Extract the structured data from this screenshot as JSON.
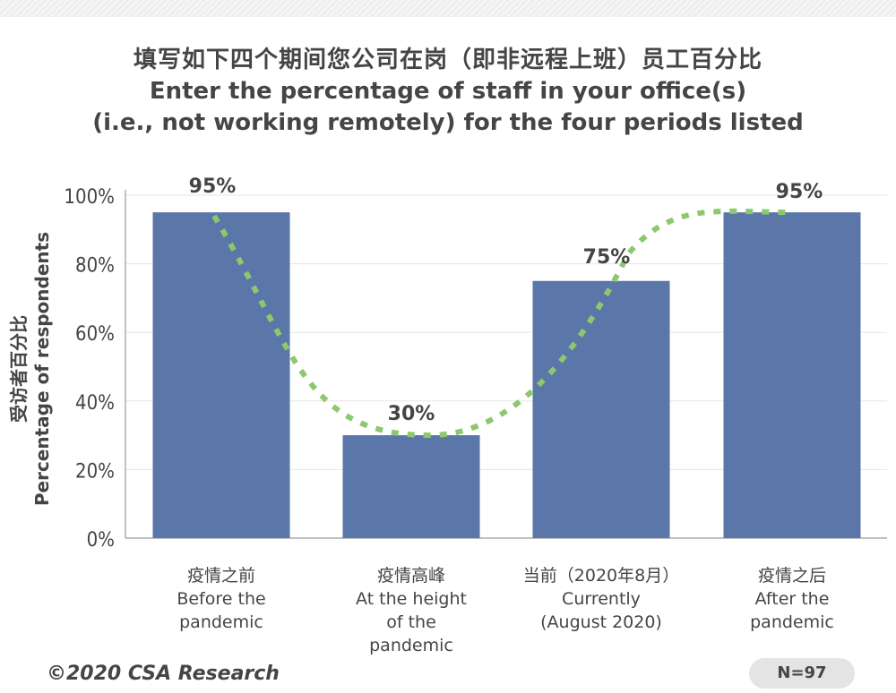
{
  "title": {
    "zh": "填写如下四个期间您公司在岗（即非远程上班）员工百分比",
    "en_line1": "Enter the percentage of staff in your office(s)",
    "en_line2": "(i.e., not working remotely) for the four periods listed"
  },
  "y_axis": {
    "label_zh": "受访者百分比",
    "label_en": "Percentage of respondents"
  },
  "footer": {
    "copyright": "©2020 CSA Research",
    "sample_size": "N=97"
  },
  "colors": {
    "bar": "#5b76a8",
    "trend_line": "#8dc86e",
    "grid": "#e6e6e6",
    "axis": "#9a9a9a",
    "text": "#454545"
  },
  "chart_data": {
    "type": "bar",
    "categories": [
      [
        "疫情之前",
        "Before the",
        "pandemic"
      ],
      [
        "疫情高峰",
        "At the height",
        "of the",
        "pandemic"
      ],
      [
        "当前（2020年8月）",
        "Currently",
        "(August 2020)"
      ],
      [
        "疫情之后",
        "After the",
        "pandemic"
      ]
    ],
    "values": [
      95,
      30,
      75,
      95
    ],
    "data_labels": [
      "95%",
      "30%",
      "75%",
      "95%"
    ],
    "ylim": [
      0,
      100
    ],
    "yticks": [
      0,
      20,
      40,
      60,
      80,
      100
    ],
    "ytick_labels": [
      "0%",
      "20%",
      "40%",
      "60%",
      "80%",
      "100%"
    ],
    "trend_line": "dotted smooth curve through bar tops",
    "grid": true
  }
}
